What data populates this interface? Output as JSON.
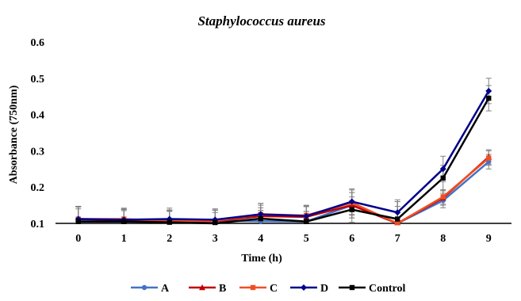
{
  "chart_data": {
    "type": "line",
    "title": "Staphylococcus aureus",
    "xlabel": "Time (h)",
    "ylabel": "Absorbance (750nm)",
    "x": [
      0,
      1,
      2,
      3,
      4,
      5,
      6,
      7,
      8,
      9
    ],
    "ylim": [
      0.1,
      0.6
    ],
    "yticks": [
      "0.1",
      "0.2",
      "0.3",
      "0.4",
      "0.5",
      "0.6"
    ],
    "grid": false,
    "legend": "bottom",
    "series": [
      {
        "name": "A",
        "color": "#4472C4",
        "marker": "circle",
        "values": [
          0.11,
          0.108,
          0.107,
          0.107,
          0.106,
          0.105,
          0.15,
          0.1,
          0.163,
          0.27
        ],
        "errors": [
          0.035,
          0.03,
          0.03,
          0.03,
          0.03,
          0.028,
          0.035,
          0.06,
          0.02,
          0.02
        ]
      },
      {
        "name": "B",
        "color": "#C00000",
        "marker": "triangle",
        "values": [
          0.112,
          0.108,
          0.105,
          0.106,
          0.12,
          0.118,
          0.15,
          0.1,
          0.17,
          0.283
        ],
        "errors": [
          0.035,
          0.03,
          0.03,
          0.03,
          0.03,
          0.028,
          0.035,
          0.06,
          0.02,
          0.02
        ]
      },
      {
        "name": "C",
        "color": "#F04E23",
        "marker": "square",
        "values": [
          0.112,
          0.112,
          0.106,
          0.107,
          0.125,
          0.122,
          0.157,
          0.1,
          0.173,
          0.28
        ],
        "errors": [
          0.035,
          0.03,
          0.03,
          0.03,
          0.03,
          0.028,
          0.035,
          0.06,
          0.02,
          0.02
        ]
      },
      {
        "name": "D",
        "color": "#00008B",
        "marker": "diamond",
        "values": [
          0.112,
          0.11,
          0.112,
          0.11,
          0.125,
          0.12,
          0.16,
          0.13,
          0.25,
          0.465
        ],
        "errors": [
          0.035,
          0.03,
          0.03,
          0.03,
          0.03,
          0.028,
          0.035,
          0.035,
          0.035,
          0.035
        ]
      },
      {
        "name": "Control",
        "color": "#000000",
        "marker": "square",
        "values": [
          0.105,
          0.105,
          0.103,
          0.1,
          0.113,
          0.105,
          0.138,
          0.112,
          0.225,
          0.445
        ],
        "errors": [
          0.035,
          0.03,
          0.03,
          0.03,
          0.03,
          0.028,
          0.035,
          0.035,
          0.035,
          0.035
        ]
      }
    ]
  }
}
